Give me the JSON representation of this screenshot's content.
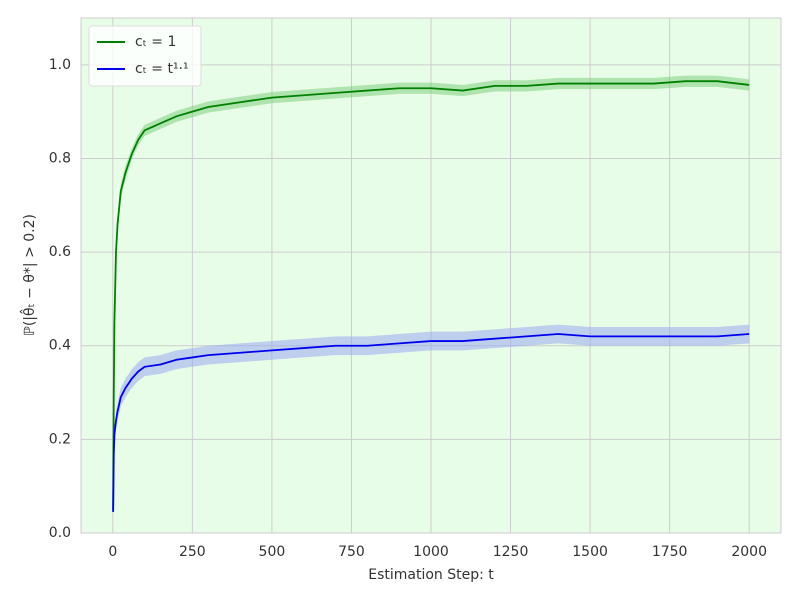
{
  "chart_data": {
    "type": "line",
    "xlabel": "Estimation Step: t",
    "ylabel": "ℙ(|θ̂ₜ − θ*| > 0.2)",
    "x": [
      1,
      3,
      5,
      10,
      15,
      25,
      40,
      60,
      80,
      100,
      150,
      200,
      250,
      300,
      400,
      500,
      600,
      700,
      800,
      900,
      1000,
      1100,
      1200,
      1300,
      1400,
      1500,
      1600,
      1700,
      1800,
      1900,
      2000
    ],
    "series": [
      {
        "name": "cₜ = 1",
        "color": "#008000",
        "band_color": "#7fd07f",
        "values": [
          0.05,
          0.3,
          0.45,
          0.6,
          0.66,
          0.73,
          0.77,
          0.81,
          0.84,
          0.86,
          0.875,
          0.89,
          0.9,
          0.91,
          0.92,
          0.93,
          0.935,
          0.94,
          0.945,
          0.95,
          0.95,
          0.945,
          0.955,
          0.955,
          0.96,
          0.96,
          0.96,
          0.96,
          0.965,
          0.965,
          0.957
        ],
        "lower": [
          0.04,
          0.28,
          0.43,
          0.58,
          0.645,
          0.715,
          0.755,
          0.798,
          0.828,
          0.848,
          0.863,
          0.878,
          0.888,
          0.898,
          0.908,
          0.918,
          0.923,
          0.928,
          0.933,
          0.938,
          0.938,
          0.933,
          0.943,
          0.943,
          0.948,
          0.948,
          0.948,
          0.948,
          0.953,
          0.953,
          0.945
        ],
        "upper": [
          0.06,
          0.32,
          0.47,
          0.62,
          0.675,
          0.745,
          0.785,
          0.822,
          0.852,
          0.872,
          0.887,
          0.902,
          0.912,
          0.922,
          0.932,
          0.942,
          0.947,
          0.952,
          0.957,
          0.962,
          0.962,
          0.957,
          0.967,
          0.967,
          0.972,
          0.972,
          0.972,
          0.972,
          0.977,
          0.977,
          0.969
        ]
      },
      {
        "name": "cₜ = t¹·¹",
        "color": "#0000ee",
        "band_color": "#9aaaf0",
        "values": [
          0.045,
          0.17,
          0.21,
          0.24,
          0.26,
          0.29,
          0.31,
          0.33,
          0.345,
          0.355,
          0.36,
          0.37,
          0.375,
          0.38,
          0.385,
          0.39,
          0.395,
          0.4,
          0.4,
          0.405,
          0.41,
          0.41,
          0.415,
          0.42,
          0.425,
          0.42,
          0.42,
          0.42,
          0.42,
          0.42,
          0.425
        ],
        "lower": [
          0.04,
          0.15,
          0.19,
          0.22,
          0.24,
          0.27,
          0.29,
          0.31,
          0.325,
          0.335,
          0.34,
          0.35,
          0.355,
          0.36,
          0.365,
          0.37,
          0.375,
          0.38,
          0.38,
          0.385,
          0.39,
          0.39,
          0.395,
          0.4,
          0.405,
          0.4,
          0.4,
          0.4,
          0.4,
          0.4,
          0.405
        ],
        "upper": [
          0.05,
          0.19,
          0.23,
          0.26,
          0.28,
          0.31,
          0.33,
          0.35,
          0.365,
          0.375,
          0.38,
          0.39,
          0.395,
          0.4,
          0.405,
          0.41,
          0.415,
          0.42,
          0.42,
          0.425,
          0.43,
          0.43,
          0.435,
          0.44,
          0.445,
          0.44,
          0.44,
          0.44,
          0.44,
          0.44,
          0.445
        ]
      }
    ],
    "xlim": [
      -100,
      2100
    ],
    "xticks": [
      0,
      250,
      500,
      750,
      1000,
      1250,
      1500,
      1750,
      2000
    ],
    "ylim": [
      0,
      1.1
    ],
    "yticks": [
      {
        "value": 0,
        "label": "0.0"
      },
      0.2,
      0.4,
      0.6,
      0.8,
      {
        "value": 1,
        "label": "1.0"
      }
    ],
    "grid": true,
    "legend": "upper-left",
    "background": "#e8fde8"
  }
}
